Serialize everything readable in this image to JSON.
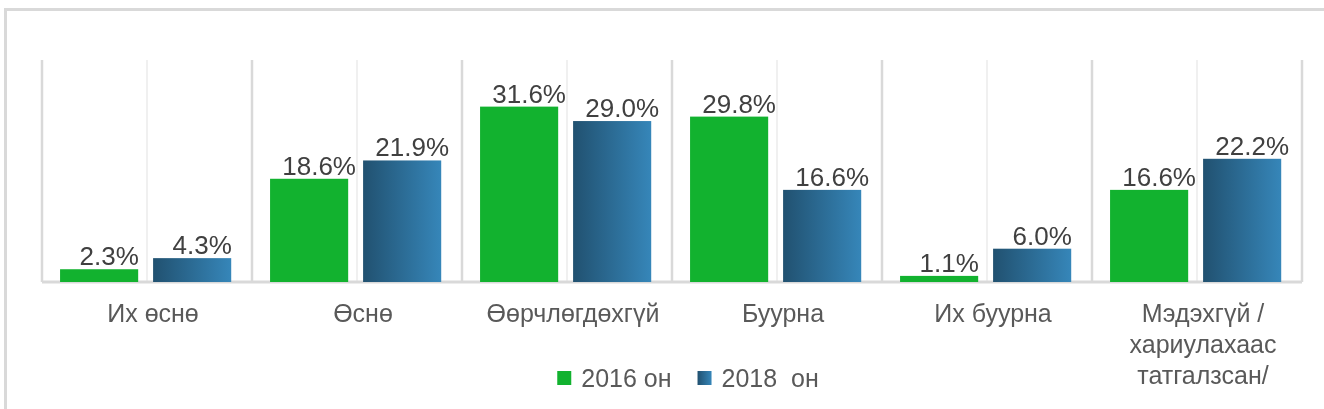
{
  "chart_data": {
    "type": "bar",
    "categories": [
      "Их өснө",
      "Өснө",
      "Өөрчлөгдөхгүй",
      "Буурна",
      "Их буурна",
      "Мэдэхгүй / хариулахаас татгалзсан/"
    ],
    "series": [
      {
        "name": "2016 он",
        "color": "#12b22f",
        "values": [
          2.3,
          18.6,
          31.6,
          29.8,
          1.1,
          16.6
        ],
        "value_labels": [
          "2.3%",
          "18.6%",
          "31.6%",
          "29.8%",
          "1.1%",
          "16.6%"
        ]
      },
      {
        "name": "2018  он",
        "color": "#2c6c95",
        "values": [
          4.3,
          21.9,
          29.0,
          16.6,
          6.0,
          22.2
        ],
        "value_labels": [
          "4.3%",
          "21.9%",
          "29.0%",
          "16.6%",
          "6.0%",
          "22.2%"
        ]
      }
    ],
    "ylim": [
      0,
      40
    ],
    "tick_labels": "x",
    "grid": "x",
    "legend": "bottom"
  }
}
